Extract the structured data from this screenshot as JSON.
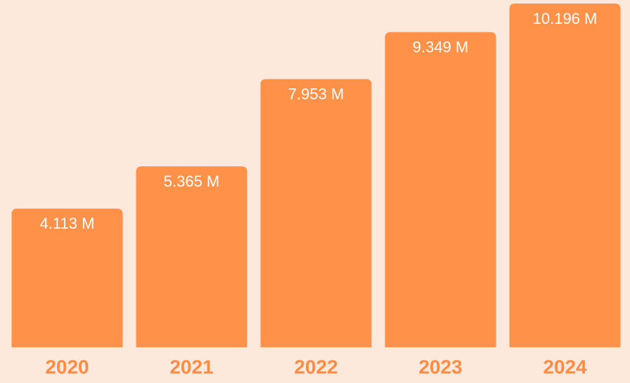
{
  "chart_data": {
    "type": "bar",
    "categories": [
      "2020",
      "2021",
      "2022",
      "2023",
      "2024"
    ],
    "values": [
      4.113,
      5.365,
      7.953,
      9.349,
      10.196
    ],
    "value_labels": [
      "4.113 M",
      "5.365 M",
      "7.953 M",
      "9.349 M",
      "10.196 M"
    ],
    "color": "#ff9148"
  }
}
